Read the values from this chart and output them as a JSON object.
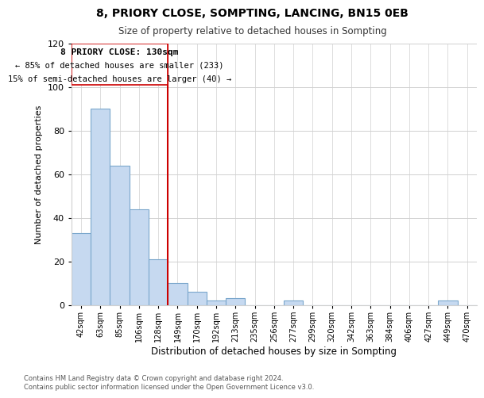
{
  "title": "8, PRIORY CLOSE, SOMPTING, LANCING, BN15 0EB",
  "subtitle": "Size of property relative to detached houses in Sompting",
  "xlabel": "Distribution of detached houses by size in Sompting",
  "ylabel": "Number of detached properties",
  "bar_labels": [
    "42sqm",
    "63sqm",
    "85sqm",
    "106sqm",
    "128sqm",
    "149sqm",
    "170sqm",
    "192sqm",
    "213sqm",
    "235sqm",
    "256sqm",
    "277sqm",
    "299sqm",
    "320sqm",
    "342sqm",
    "363sqm",
    "384sqm",
    "406sqm",
    "427sqm",
    "449sqm",
    "470sqm"
  ],
  "bar_values": [
    33,
    90,
    64,
    44,
    21,
    10,
    6,
    2,
    3,
    0,
    0,
    2,
    0,
    0,
    0,
    0,
    0,
    0,
    0,
    2,
    0
  ],
  "bar_color": "#c6d9f0",
  "bar_edge_color": "#7ba7cc",
  "vline_color": "#cc0000",
  "annotation_line1": "8 PRIORY CLOSE: 130sqm",
  "annotation_line2": "← 85% of detached houses are smaller (233)",
  "annotation_line3": "15% of semi-detached houses are larger (40) →",
  "ylim": [
    0,
    120
  ],
  "yticks": [
    0,
    20,
    40,
    60,
    80,
    100,
    120
  ],
  "footer_line1": "Contains HM Land Registry data © Crown copyright and database right 2024.",
  "footer_line2": "Contains public sector information licensed under the Open Government Licence v3.0.",
  "background_color": "#ffffff",
  "grid_color": "#d0d0d0"
}
